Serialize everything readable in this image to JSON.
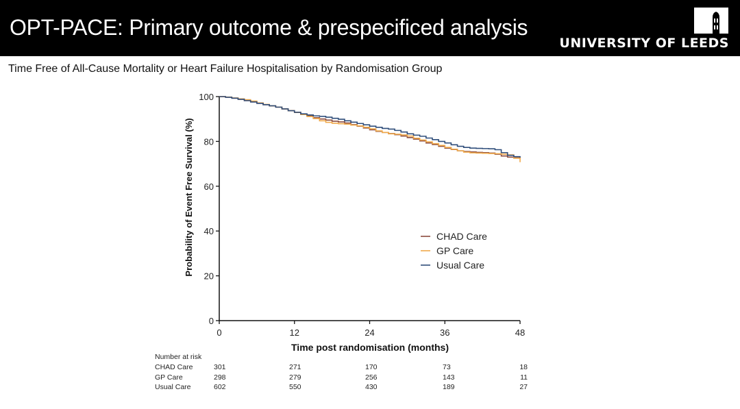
{
  "header": {
    "title": "OPT-PACE: Primary outcome & prespecificed analysis",
    "institution": "UNIVERSITY OF LEEDS",
    "logo_icon": "leeds-tower-logo"
  },
  "subtitle": "Time Free of All-Cause Mortality or Heart Failure Hospitalisation by Randomisation Group",
  "colors": {
    "header_bg": "#000000",
    "chad_care": "#8b4a3c",
    "gp_care": "#f0a94a",
    "usual_care": "#2f4d7a"
  },
  "chart_data": {
    "type": "line",
    "subtype": "kaplan-meier-step",
    "title": "Time Free of All-Cause Mortality or Heart Failure Hospitalisation by Randomisation Group",
    "xlabel": "Time post randomisation (months)",
    "ylabel": "Probability of Event Free Survival (%)",
    "xlim": [
      0,
      48
    ],
    "ylim": [
      0,
      100
    ],
    "xticks": [
      0,
      12,
      24,
      36,
      48
    ],
    "yticks": [
      0,
      20,
      40,
      60,
      80,
      100
    ],
    "grid": false,
    "legend_position": "center-right",
    "series": [
      {
        "name": "CHAD Care",
        "color": "#8b4a3c",
        "points": [
          [
            0,
            100
          ],
          [
            1,
            99.7
          ],
          [
            2,
            99.3
          ],
          [
            3,
            98.8
          ],
          [
            4,
            98.2
          ],
          [
            5,
            97.6
          ],
          [
            6,
            97
          ],
          [
            7,
            96.4
          ],
          [
            8,
            95.9
          ],
          [
            9,
            95.3
          ],
          [
            10,
            94.5
          ],
          [
            11,
            93.7
          ],
          [
            12,
            93
          ],
          [
            13,
            92.2
          ],
          [
            14,
            91.4
          ],
          [
            15,
            90.6
          ],
          [
            16,
            90
          ],
          [
            17,
            89.5
          ],
          [
            18,
            89
          ],
          [
            19,
            88.7
          ],
          [
            20,
            88.2
          ],
          [
            21,
            87.5
          ],
          [
            22,
            86.8
          ],
          [
            23,
            86
          ],
          [
            24,
            85.2
          ],
          [
            25,
            84.5
          ],
          [
            26,
            84
          ],
          [
            27,
            83.5
          ],
          [
            28,
            83
          ],
          [
            29,
            82.4
          ],
          [
            30,
            81.7
          ],
          [
            31,
            81
          ],
          [
            32,
            80.2
          ],
          [
            33,
            79.3
          ],
          [
            34,
            78.6
          ],
          [
            35,
            77.8
          ],
          [
            36,
            77
          ],
          [
            37,
            76.4
          ],
          [
            38,
            75.8
          ],
          [
            39,
            75.5
          ],
          [
            40,
            75.3
          ],
          [
            41,
            75.1
          ],
          [
            42,
            75
          ],
          [
            43,
            74.8
          ],
          [
            44,
            74.3
          ],
          [
            45,
            73.5
          ],
          [
            46,
            73
          ],
          [
            47,
            72.7
          ],
          [
            48,
            72.5
          ]
        ]
      },
      {
        "name": "GP Care",
        "color": "#f0a94a",
        "points": [
          [
            0,
            100
          ],
          [
            1,
            99.8
          ],
          [
            2,
            99.4
          ],
          [
            3,
            99
          ],
          [
            4,
            98.6
          ],
          [
            5,
            98
          ],
          [
            6,
            97.2
          ],
          [
            7,
            96.5
          ],
          [
            8,
            95.9
          ],
          [
            9,
            95.3
          ],
          [
            10,
            94.5
          ],
          [
            11,
            93.7
          ],
          [
            12,
            92.9
          ],
          [
            13,
            92
          ],
          [
            14,
            91.1
          ],
          [
            15,
            90.2
          ],
          [
            16,
            89.2
          ],
          [
            17,
            88.5
          ],
          [
            18,
            88.1
          ],
          [
            19,
            87.9
          ],
          [
            20,
            87.7
          ],
          [
            21,
            87.3
          ],
          [
            22,
            86.9
          ],
          [
            23,
            86.3
          ],
          [
            24,
            85.6
          ],
          [
            25,
            84.7
          ],
          [
            26,
            84
          ],
          [
            27,
            83.4
          ],
          [
            28,
            83.2
          ],
          [
            29,
            82.9
          ],
          [
            30,
            82.4
          ],
          [
            31,
            81.4
          ],
          [
            32,
            80.6
          ],
          [
            33,
            79.8
          ],
          [
            34,
            79
          ],
          [
            35,
            78.2
          ],
          [
            36,
            77.3
          ],
          [
            37,
            76.5
          ],
          [
            38,
            75.8
          ],
          [
            39,
            75.2
          ],
          [
            40,
            74.9
          ],
          [
            41,
            74.8
          ],
          [
            42,
            74.7
          ],
          [
            43,
            74.6
          ],
          [
            44,
            74.5
          ],
          [
            45,
            74.3
          ],
          [
            46,
            74
          ],
          [
            47,
            72.5
          ],
          [
            48,
            70.7
          ]
        ]
      },
      {
        "name": "Usual Care",
        "color": "#2f4d7a",
        "points": [
          [
            0,
            100
          ],
          [
            1,
            99.7
          ],
          [
            2,
            99.3
          ],
          [
            3,
            98.8
          ],
          [
            4,
            98.2
          ],
          [
            5,
            97.6
          ],
          [
            6,
            97
          ],
          [
            7,
            96.4
          ],
          [
            8,
            95.9
          ],
          [
            9,
            95.3
          ],
          [
            10,
            94.5
          ],
          [
            11,
            93.7
          ],
          [
            12,
            93
          ],
          [
            13,
            92.3
          ],
          [
            14,
            91.8
          ],
          [
            15,
            91.4
          ],
          [
            16,
            91.2
          ],
          [
            17,
            90.8
          ],
          [
            18,
            90.3
          ],
          [
            19,
            89.9
          ],
          [
            20,
            89.2
          ],
          [
            21,
            88.6
          ],
          [
            22,
            88
          ],
          [
            23,
            87.4
          ],
          [
            24,
            86.8
          ],
          [
            25,
            86.3
          ],
          [
            26,
            85.8
          ],
          [
            27,
            85.5
          ],
          [
            28,
            84.9
          ],
          [
            29,
            84.2
          ],
          [
            30,
            83.4
          ],
          [
            31,
            82.8
          ],
          [
            32,
            82.3
          ],
          [
            33,
            81.5
          ],
          [
            34,
            80.8
          ],
          [
            35,
            80
          ],
          [
            36,
            79.3
          ],
          [
            37,
            78.5
          ],
          [
            38,
            77.8
          ],
          [
            39,
            77.3
          ],
          [
            40,
            77
          ],
          [
            41,
            76.9
          ],
          [
            42,
            76.8
          ],
          [
            43,
            76.7
          ],
          [
            44,
            76.3
          ],
          [
            45,
            75
          ],
          [
            46,
            73.8
          ],
          [
            47,
            73.2
          ],
          [
            48,
            72.8
          ]
        ]
      }
    ],
    "legend": [
      "CHAD Care",
      "GP Care",
      "Usual Care"
    ]
  },
  "risk_table": {
    "title": "Number at risk",
    "timepoints": [
      0,
      12,
      24,
      36,
      48
    ],
    "rows": [
      {
        "label": "CHAD Care",
        "values": [
          "301",
          "271",
          "170",
          "73",
          "18"
        ]
      },
      {
        "label": "GP Care",
        "values": [
          "298",
          "279",
          "256",
          "143",
          "11"
        ]
      },
      {
        "label": "Usual Care",
        "values": [
          "602",
          "550",
          "430",
          "189",
          "27"
        ]
      }
    ]
  }
}
